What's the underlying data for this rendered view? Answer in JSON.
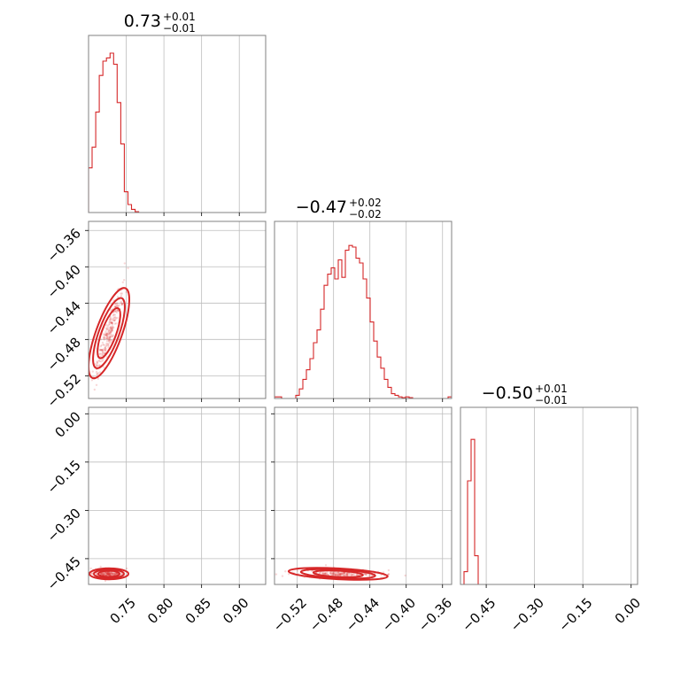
{
  "chart_data": {
    "type": "corner",
    "colors": {
      "series": "#d62728",
      "grid": "#bdbdbd",
      "frame": "#808080"
    },
    "parameters": [
      {
        "median": "0.73",
        "plus": "+0.01",
        "minus": "−0.01",
        "range": [
          0.7,
          0.935
        ],
        "ticks": [
          0.75,
          0.8,
          0.85,
          0.9
        ],
        "tick_labels": [
          "0.75",
          "0.80",
          "0.85",
          "0.90"
        ]
      },
      {
        "median": "−0.47",
        "plus": "+0.02",
        "minus": "−0.02",
        "range": [
          -0.545,
          -0.35
        ],
        "ticks": [
          -0.52,
          -0.48,
          -0.44,
          -0.4,
          -0.36
        ],
        "tick_labels": [
          "−0.52",
          "−0.48",
          "−0.44",
          "−0.40",
          "−0.36"
        ]
      },
      {
        "median": "−0.50",
        "plus": "+0.01",
        "minus": "−0.01",
        "range": [
          -0.53,
          0.02
        ],
        "ticks": [
          -0.45,
          -0.3,
          -0.15,
          0.0
        ],
        "tick_labels": [
          "−0.45",
          "−0.30",
          "−0.15",
          "0.00"
        ]
      }
    ],
    "histograms": [
      {
        "x0": 0.7,
        "dx": 0.00475,
        "counts": [
          0.28,
          0.41,
          0.63,
          0.86,
          0.95,
          0.97,
          1.0,
          0.93,
          0.69,
          0.43,
          0.13,
          0.05,
          0.02,
          0.005,
          0,
          0,
          0,
          0,
          0,
          0,
          0,
          0,
          0,
          0,
          0,
          0,
          0,
          0,
          0,
          0,
          0,
          0,
          0,
          0,
          0,
          0,
          0,
          0,
          0,
          0,
          0,
          0,
          0,
          0,
          0,
          0,
          0,
          0,
          0,
          0
        ]
      },
      {
        "x0": -0.545,
        "dx": 0.0039,
        "counts": [
          0.01,
          0.01,
          0,
          0,
          0,
          0,
          0.02,
          0.06,
          0.12,
          0.18,
          0.25,
          0.35,
          0.43,
          0.56,
          0.71,
          0.78,
          0.82,
          0.75,
          0.87,
          0.76,
          0.93,
          0.96,
          0.95,
          0.88,
          0.85,
          0.75,
          0.63,
          0.48,
          0.36,
          0.26,
          0.19,
          0.12,
          0.07,
          0.03,
          0.02,
          0.01,
          0.005,
          0.01,
          0.005,
          0,
          0,
          0,
          0,
          0,
          0,
          0,
          0,
          0,
          0,
          0.01
        ]
      },
      {
        "x0": -0.53,
        "dx": 0.011,
        "counts": [
          0,
          0.08,
          0.65,
          0.91,
          0.18,
          0,
          0,
          0,
          0,
          0,
          0,
          0,
          0,
          0,
          0,
          0,
          0,
          0,
          0,
          0,
          0,
          0,
          0,
          0,
          0,
          0,
          0,
          0,
          0,
          0,
          0,
          0,
          0,
          0,
          0,
          0,
          0,
          0,
          0,
          0,
          0,
          0,
          0,
          0,
          0,
          0,
          0,
          0,
          0,
          0
        ]
      }
    ],
    "pairs": [
      {
        "x_param": 0,
        "y_param": 1,
        "center": [
          0.727,
          -0.473
        ],
        "correlated": true
      },
      {
        "x_param": 0,
        "y_param": 2,
        "center": [
          0.727,
          -0.497
        ],
        "correlated": false
      },
      {
        "x_param": 1,
        "y_param": 2,
        "center": [
          -0.475,
          -0.497
        ],
        "correlated": false
      }
    ]
  }
}
